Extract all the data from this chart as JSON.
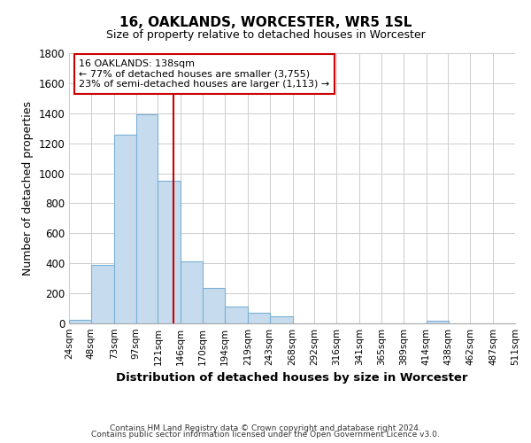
{
  "title": "16, OAKLANDS, WORCESTER, WR5 1SL",
  "subtitle": "Size of property relative to detached houses in Worcester",
  "xlabel": "Distribution of detached houses by size in Worcester",
  "ylabel": "Number of detached properties",
  "bar_left_edges": [
    24,
    48,
    73,
    97,
    121,
    146,
    170,
    194,
    219,
    243,
    268,
    292,
    316,
    341,
    365,
    389,
    414,
    438,
    462,
    487
  ],
  "bar_heights": [
    25,
    390,
    1260,
    1390,
    950,
    415,
    235,
    110,
    70,
    50,
    0,
    0,
    0,
    0,
    0,
    0,
    15,
    0,
    0,
    0
  ],
  "bar_widths": [
    24,
    25,
    24,
    24,
    25,
    24,
    24,
    25,
    24,
    25,
    24,
    25,
    24,
    25,
    24,
    24,
    25,
    24,
    25,
    24
  ],
  "bar_color": "#c6dcee",
  "bar_edgecolor": "#7ab0d4",
  "vline_x": 138,
  "vline_color": "#cc0000",
  "annotation_text": "16 OAKLANDS: 138sqm\n← 77% of detached houses are smaller (3,755)\n23% of semi-detached houses are larger (1,113) →",
  "annotation_box_color": "#ffffff",
  "annotation_box_edgecolor": "#cc0000",
  "xlim": [
    24,
    511
  ],
  "ylim": [
    0,
    1800
  ],
  "yticks": [
    0,
    200,
    400,
    600,
    800,
    1000,
    1200,
    1400,
    1600,
    1800
  ],
  "xtick_labels": [
    "24sqm",
    "48sqm",
    "73sqm",
    "97sqm",
    "121sqm",
    "146sqm",
    "170sqm",
    "194sqm",
    "219sqm",
    "243sqm",
    "268sqm",
    "292sqm",
    "316sqm",
    "341sqm",
    "365sqm",
    "389sqm",
    "414sqm",
    "438sqm",
    "462sqm",
    "487sqm",
    "511sqm"
  ],
  "xtick_positions": [
    24,
    48,
    73,
    97,
    121,
    146,
    170,
    194,
    219,
    243,
    268,
    292,
    316,
    341,
    365,
    389,
    414,
    438,
    462,
    487,
    511
  ],
  "grid_color": "#cccccc",
  "background_color": "#ffffff",
  "footnote_line1": "Contains HM Land Registry data © Crown copyright and database right 2024.",
  "footnote_line2": "Contains public sector information licensed under the Open Government Licence v3.0."
}
